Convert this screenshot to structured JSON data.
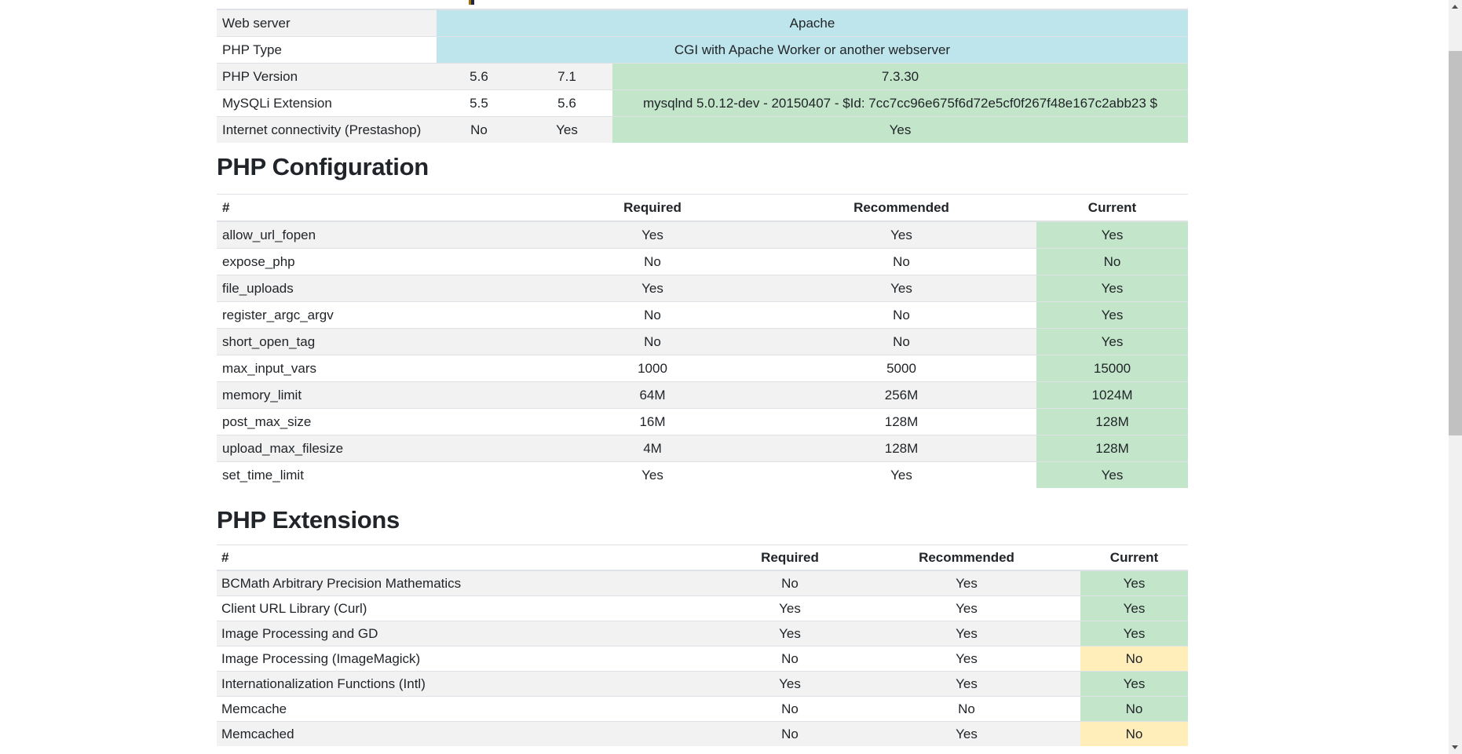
{
  "colors": {
    "success": "#c3e6cb",
    "warning": "#ffeeba",
    "info": "#bee5eb",
    "stripe": "rgba(0,0,0,0.05)",
    "border": "#dee2e6",
    "text": "#212529"
  },
  "sections": {
    "server_summary": {
      "rows": [
        {
          "label": "Web server",
          "span": "Apache",
          "variant": "info"
        },
        {
          "label": "PHP Type",
          "span": "CGI with Apache Worker or another webserver",
          "variant": "info"
        },
        {
          "label": "PHP Version",
          "required": "5.6",
          "recommended": "7.1",
          "current": "7.3.30",
          "variant": "success"
        },
        {
          "label": "MySQLi Extension",
          "required": "5.5",
          "recommended": "5.6",
          "current": "mysqlnd 5.0.12-dev - 20150407 - $Id: 7cc7cc96e675f6d72e5cf0f267f48e167c2abb23 $",
          "variant": "success"
        },
        {
          "label": "Internet connectivity (Prestashop)",
          "required": "No",
          "recommended": "Yes",
          "current": "Yes",
          "variant": "success"
        }
      ]
    },
    "php_configuration": {
      "title": "PHP Configuration",
      "headers": [
        "#",
        "Required",
        "Recommended",
        "Current"
      ],
      "rows": [
        {
          "label": "allow_url_fopen",
          "required": "Yes",
          "recommended": "Yes",
          "current": "Yes",
          "variant": "success"
        },
        {
          "label": "expose_php",
          "required": "No",
          "recommended": "No",
          "current": "No",
          "variant": "success"
        },
        {
          "label": "file_uploads",
          "required": "Yes",
          "recommended": "Yes",
          "current": "Yes",
          "variant": "success"
        },
        {
          "label": "register_argc_argv",
          "required": "No",
          "recommended": "No",
          "current": "Yes",
          "variant": "success"
        },
        {
          "label": "short_open_tag",
          "required": "No",
          "recommended": "No",
          "current": "Yes",
          "variant": "success"
        },
        {
          "label": "max_input_vars",
          "required": "1000",
          "recommended": "5000",
          "current": "15000",
          "variant": "success"
        },
        {
          "label": "memory_limit",
          "required": "64M",
          "recommended": "256M",
          "current": "1024M",
          "variant": "success"
        },
        {
          "label": "post_max_size",
          "required": "16M",
          "recommended": "128M",
          "current": "128M",
          "variant": "success"
        },
        {
          "label": "upload_max_filesize",
          "required": "4M",
          "recommended": "128M",
          "current": "128M",
          "variant": "success"
        },
        {
          "label": "set_time_limit",
          "required": "Yes",
          "recommended": "Yes",
          "current": "Yes",
          "variant": "success"
        }
      ]
    },
    "php_extensions": {
      "title": "PHP Extensions",
      "headers": [
        "#",
        "Required",
        "Recommended",
        "Current"
      ],
      "rows": [
        {
          "label": "BCMath Arbitrary Precision Mathematics",
          "required": "No",
          "recommended": "Yes",
          "current": "Yes",
          "variant": "success"
        },
        {
          "label": "Client URL Library (Curl)",
          "required": "Yes",
          "recommended": "Yes",
          "current": "Yes",
          "variant": "success"
        },
        {
          "label": "Image Processing and GD",
          "required": "Yes",
          "recommended": "Yes",
          "current": "Yes",
          "variant": "success"
        },
        {
          "label": "Image Processing (ImageMagick)",
          "required": "No",
          "recommended": "Yes",
          "current": "No",
          "variant": "warning"
        },
        {
          "label": "Internationalization Functions (Intl)",
          "required": "Yes",
          "recommended": "Yes",
          "current": "Yes",
          "variant": "success"
        },
        {
          "label": "Memcache",
          "required": "No",
          "recommended": "No",
          "current": "No",
          "variant": "success"
        },
        {
          "label": "Memcached",
          "required": "No",
          "recommended": "Yes",
          "current": "No",
          "variant": "warning"
        }
      ]
    }
  }
}
